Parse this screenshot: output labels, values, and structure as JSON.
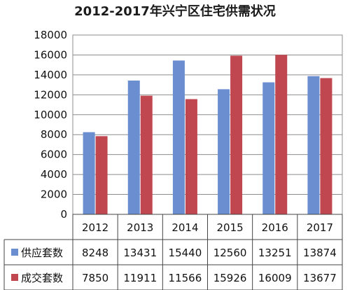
{
  "title": "2012-2017年兴宁区住宅供需状况",
  "chart_data": {
    "type": "bar",
    "title": "2012-2017年兴宁区住宅供需状况",
    "categories": [
      "2012",
      "2013",
      "2014",
      "2015",
      "2016",
      "2017"
    ],
    "series": [
      {
        "name": "供应套数",
        "color": "#6a8ed0",
        "values": [
          8248,
          13431,
          15440,
          12560,
          13251,
          13874
        ]
      },
      {
        "name": "成交套数",
        "color": "#c0474f",
        "values": [
          7850,
          11911,
          11566,
          15926,
          16009,
          13677
        ]
      }
    ],
    "yticks": [
      "0",
      "2000",
      "4000",
      "6000",
      "8000",
      "10000",
      "12000",
      "14000",
      "16000",
      "18000"
    ],
    "ylim": [
      0,
      18000
    ],
    "grid": true,
    "legend": "data-table"
  }
}
